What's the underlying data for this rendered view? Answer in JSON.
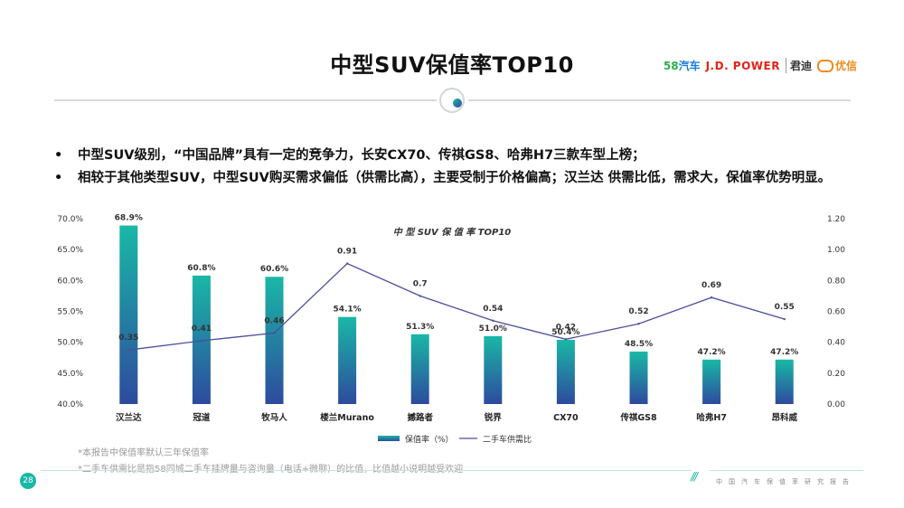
{
  "title": "中型SUV保值率TOP10",
  "logos": {
    "l58a": "58",
    "l58b": "汽车",
    "jd": "J.D. POWER",
    "jun": "君迪",
    "you": "优信"
  },
  "bullets": [
    "中型SUV级别，“中国品牌”具有一定的竞争力，长安CX70、传祺GS8、哈弗H7三款车型上榜；",
    "相较于其他类型SUV，中型SUV购买需求偏低（供需比高），主要受制于价格偏高；汉兰达 供需比低，需求大，保值率优势明显。"
  ],
  "bullet_symbol": "•",
  "chart_data": {
    "type": "bar",
    "title": "中 型 SUV 保 值 率 TOP10",
    "categories": [
      "汉兰达",
      "冠道",
      "牧马人",
      "楼兰Murano",
      "撼路者",
      "锐界",
      "CX70",
      "传祺GS8",
      "哈弗H7",
      "昂科威"
    ],
    "series": [
      {
        "name": "保值率（%）",
        "type": "bar",
        "axis": "left",
        "values": [
          68.9,
          60.8,
          60.6,
          54.1,
          51.3,
          51.0,
          50.4,
          48.5,
          47.2,
          47.2
        ],
        "labels": [
          "68.9%",
          "60.8%",
          "60.6%",
          "54.1%",
          "51.3%",
          "51.0%",
          "50.4%",
          "48.5%",
          "47.2%",
          "47.2%"
        ],
        "color_top": "#19b8a6",
        "color_bottom": "#2e4a9e"
      },
      {
        "name": "二手车供需比",
        "type": "line",
        "axis": "right",
        "values": [
          0.35,
          0.41,
          0.46,
          0.91,
          0.7,
          0.54,
          0.42,
          0.52,
          0.69,
          0.55
        ],
        "labels": [
          "0.35",
          "0.41",
          "0.46",
          "0.91",
          "0.7",
          "0.54",
          "0.42",
          "0.52",
          "0.69",
          "0.55"
        ],
        "color": "#4a4f9c"
      }
    ],
    "left_axis": {
      "ylim": [
        40,
        70
      ],
      "ticks": [
        "40.0%",
        "45.0%",
        "50.0%",
        "55.0%",
        "60.0%",
        "65.0%",
        "70.0%"
      ]
    },
    "right_axis": {
      "ylim": [
        0,
        1.2
      ],
      "ticks": [
        "0.00",
        "0.20",
        "0.40",
        "0.60",
        "0.80",
        "1.00",
        "1.20"
      ]
    },
    "grid": false,
    "legend_position": "bottom"
  },
  "footnotes": [
    "*本报告中保值率默认三年保值率",
    "*二手车供需比是指58同城二手车挂牌量与咨询量（电话+微聊）的比值，比值越小说明越受欢迎"
  ],
  "page_number": "28",
  "footer_slashes": "///",
  "footer_text": "中国汽车保值率研究报告"
}
